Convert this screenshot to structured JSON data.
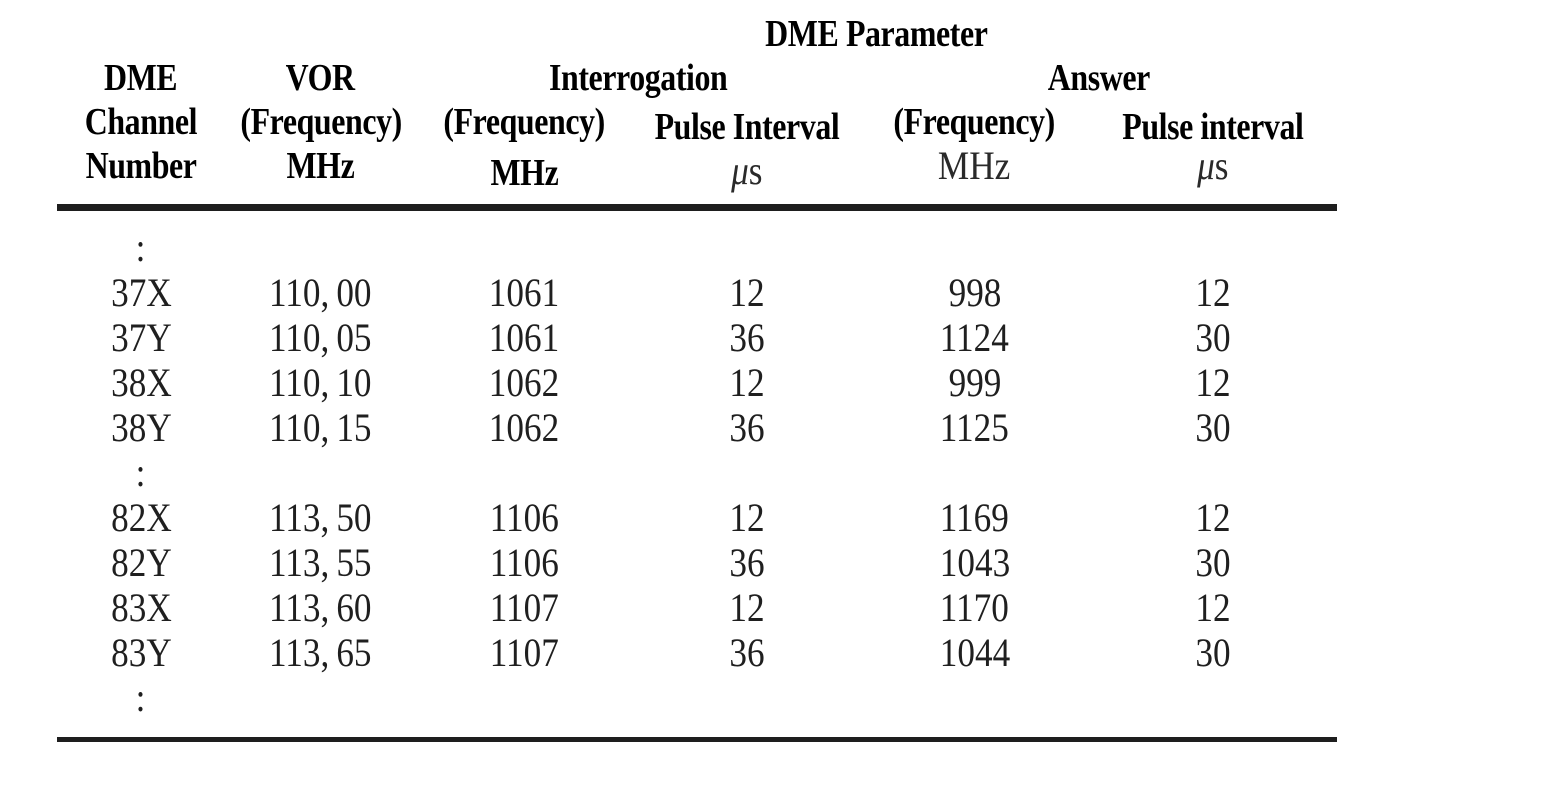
{
  "table": {
    "title": "DME Parameter",
    "columns": {
      "channel": [
        "DME",
        "Channel",
        "Number"
      ],
      "vor": [
        "VOR",
        "(Frequency)",
        "MHz"
      ],
      "interrogation": {
        "group": "Interrogation",
        "freq": "(Frequency)",
        "freq_unit": "MHz",
        "pulse": "Pulse Interval",
        "mu": "μ",
        "s": "s"
      },
      "answer": {
        "group": "Answer",
        "freq": "(Frequency)",
        "freq_unit": "MHz",
        "pulse": "Pulse interval",
        "mu": "μ",
        "s": "s"
      }
    },
    "ellipsis": ":",
    "rows": [
      {
        "channel": "37X",
        "vor": "110, 00",
        "int_freq": "1061",
        "int_pulse": "12",
        "ans_freq": "998",
        "ans_pulse": "12"
      },
      {
        "channel": "37Y",
        "vor": "110, 05",
        "int_freq": "1061",
        "int_pulse": "36",
        "ans_freq": "1124",
        "ans_pulse": "30"
      },
      {
        "channel": "38X",
        "vor": "110, 10",
        "int_freq": "1062",
        "int_pulse": "12",
        "ans_freq": "999",
        "ans_pulse": "12"
      },
      {
        "channel": "38Y",
        "vor": "110, 15",
        "int_freq": "1062",
        "int_pulse": "36",
        "ans_freq": "1125",
        "ans_pulse": "30"
      },
      {
        "channel": "82X",
        "vor": "113, 50",
        "int_freq": "1106",
        "int_pulse": "12",
        "ans_freq": "1169",
        "ans_pulse": "12"
      },
      {
        "channel": "82Y",
        "vor": "113, 55",
        "int_freq": "1106",
        "int_pulse": "36",
        "ans_freq": "1043",
        "ans_pulse": "30"
      },
      {
        "channel": "83X",
        "vor": "113, 60",
        "int_freq": "1107",
        "int_pulse": "12",
        "ans_freq": "1170",
        "ans_pulse": "12"
      },
      {
        "channel": "83Y",
        "vor": "113, 65",
        "int_freq": "1107",
        "int_pulse": "36",
        "ans_freq": "1044",
        "ans_pulse": "30"
      }
    ]
  }
}
